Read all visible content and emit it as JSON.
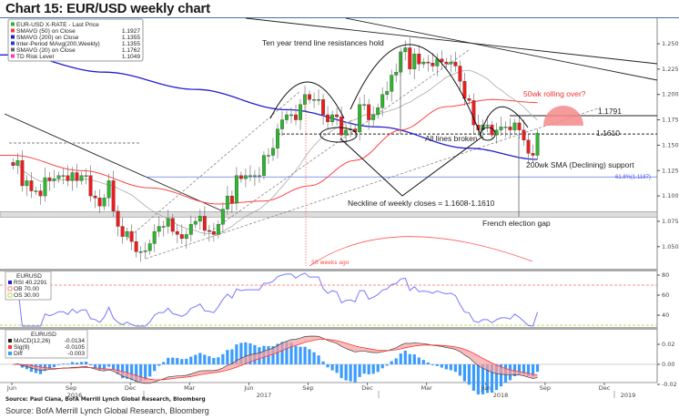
{
  "title": "Chart 15: EUR/USD weekly chart",
  "legend": {
    "items": [
      {
        "label": "EUR-USD X-RATE - Last Price",
        "value": "",
        "color": "#2fb52f"
      },
      {
        "label": "SMAVG (50)  on Close",
        "value": "1.1927",
        "color": "#ff3b3b"
      },
      {
        "label": "SMAVG (200)  on Close",
        "value": "1.1355",
        "color": "#1f1fd0"
      },
      {
        "label": "Inter-Period MAvg(200,Weekly)",
        "value": "1.1355",
        "color": "#1f3fe0"
      },
      {
        "label": "SMAVG (20)  on Close",
        "value": "1.1762",
        "color": "#666666"
      },
      {
        "label": "TD Risk Level",
        "value": "1.1049",
        "color": "#ff33cc"
      }
    ]
  },
  "annotations": {
    "trend": "Ten year trend line resistances hold",
    "rolling": "50wk rolling over?",
    "level1": "1.1791",
    "level2": "1.1610",
    "broken": "All lines broken",
    "sma200": "200wk SMA (Declining) support",
    "fib": "61.8%(1.1187)",
    "neckline": "Neckline of weekly closes = 1.1608-1.1610",
    "gap": "French election gap",
    "weeksago": "50 weeks ago"
  },
  "rsi_legend": {
    "title": "EURUSD",
    "rsi": "RSI 40.2291",
    "ob": "OB 70.00",
    "os": "OS 30.00"
  },
  "macd_legend": {
    "title": "EURUSD",
    "macd": "MACD(12,26)",
    "macd_v": "-0.0134",
    "sig": "Sig(9)",
    "sig_v": "-0.0105",
    "diff": "Diff",
    "diff_v": "-0.003"
  },
  "sources": {
    "inner": "Source: Paul Ciana, BofA Merrill Lynch Global Research, Bloomberg",
    "outer": "Source: BofA Merrill Lynch Global Research, Bloomberg"
  },
  "chart_data": {
    "type": "candlestick",
    "title": "Chart 15: EUR/USD weekly chart",
    "start_week": "2016-06-03",
    "closes": [
      1.13,
      1.135,
      1.11,
      1.115,
      1.105,
      1.105,
      1.1,
      1.118,
      1.115,
      1.117,
      1.12,
      1.12,
      1.115,
      1.123,
      1.115,
      1.12,
      1.12,
      1.1,
      1.098,
      1.09,
      1.098,
      1.115,
      1.085,
      1.07,
      1.06,
      1.065,
      1.055,
      1.045,
      1.045,
      1.046,
      1.053,
      1.065,
      1.07,
      1.07,
      1.078,
      1.065,
      1.062,
      1.058,
      1.062,
      1.072,
      1.075,
      1.08,
      1.066,
      1.065,
      1.062,
      1.072,
      1.087,
      1.1,
      1.093,
      1.12,
      1.117,
      1.12,
      1.12,
      1.12,
      1.12,
      1.14,
      1.14,
      1.147,
      1.166,
      1.175,
      1.18,
      1.18,
      1.175,
      1.19,
      1.2,
      1.195,
      1.195,
      1.195,
      1.18,
      1.173,
      1.18,
      1.178,
      1.16,
      1.165,
      1.166,
      1.163,
      1.19,
      1.19,
      1.175,
      1.18,
      1.187,
      1.2,
      1.203,
      1.219,
      1.222,
      1.242,
      1.246,
      1.225,
      1.24,
      1.23,
      1.232,
      1.231,
      1.228,
      1.235,
      1.232,
      1.23,
      1.232,
      1.228,
      1.213,
      1.196,
      1.194,
      1.17,
      1.165,
      1.17,
      1.17,
      1.16,
      1.165,
      1.168,
      1.168,
      1.165,
      1.172,
      1.165,
      1.155,
      1.142,
      1.14,
      1.162
    ],
    "sma200_points": [
      [
        0,
        1.239
      ],
      [
        20,
        1.222
      ],
      [
        40,
        1.205
      ],
      [
        60,
        1.185
      ],
      [
        80,
        1.168
      ],
      [
        100,
        1.147
      ],
      [
        115,
        1.136
      ]
    ],
    "sma50_points": [
      [
        0,
        1.14
      ],
      [
        15,
        1.125
      ],
      [
        30,
        1.108
      ],
      [
        45,
        1.092
      ],
      [
        55,
        1.095
      ],
      [
        65,
        1.11
      ],
      [
        75,
        1.135
      ],
      [
        85,
        1.165
      ],
      [
        95,
        1.188
      ],
      [
        105,
        1.195
      ],
      [
        115,
        1.192
      ]
    ],
    "levels": {
      "resistance": 1.1791,
      "neckline": 1.161,
      "fib618": 1.1187,
      "gap_low": 1.081,
      "gap_high": 1.0835
    },
    "price_axis": {
      "ticks": [
        "1.2500",
        "1.2250",
        "1.2000",
        "1.1750",
        "1.1500",
        "1.1250",
        "1.1000",
        "1.0750",
        "1.0500"
      ],
      "range": [
        1.025,
        1.275
      ]
    },
    "rsi_axis": {
      "ticks": [
        "80",
        "60",
        "40"
      ],
      "ob": 70,
      "os": 30
    },
    "macd_axis": {
      "ticks": [
        "0.02",
        "0.00",
        "-0.02"
      ]
    },
    "x_ticks": [
      "Jun",
      "Sep",
      "Dec",
      "Mar",
      "Jun",
      "Sep",
      "Dec",
      "Mar",
      "Jun",
      "Sep",
      "Dec"
    ],
    "x_years": [
      "2016",
      "2017",
      "2018",
      "2019"
    ]
  }
}
